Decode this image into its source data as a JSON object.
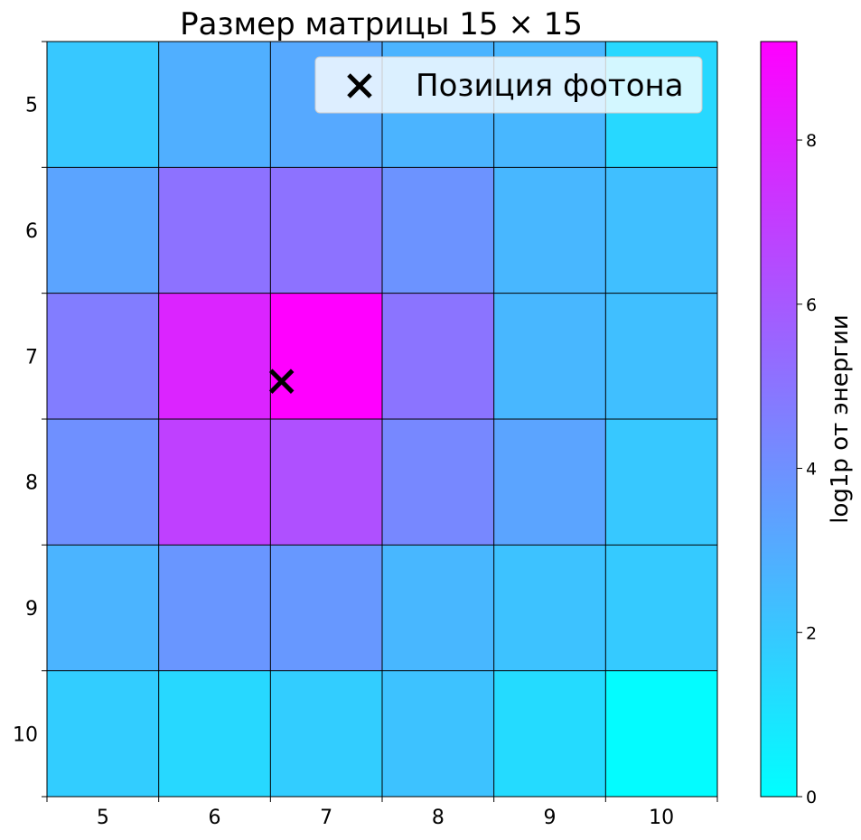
{
  "chart_data": {
    "type": "heatmap",
    "title": "Размер матрицы 15 × 15",
    "x_ticks": [
      "5",
      "6",
      "7",
      "8",
      "9",
      "10"
    ],
    "y_ticks": [
      "5",
      "6",
      "7",
      "8",
      "9",
      "10"
    ],
    "xlim": [
      4.5,
      10.5
    ],
    "ylim": [
      10.5,
      4.5
    ],
    "values": [
      [
        2.0,
        2.9,
        3.1,
        2.7,
        2.6,
        1.4
      ],
      [
        3.3,
        5.1,
        5.1,
        3.9,
        2.6,
        2.3
      ],
      [
        4.7,
        7.9,
        9.2,
        5.0,
        2.6,
        2.3
      ],
      [
        4.0,
        6.9,
        6.3,
        4.3,
        3.3,
        2.0
      ],
      [
        2.7,
        3.8,
        3.7,
        2.6,
        2.2,
        1.9
      ],
      [
        1.8,
        1.4,
        1.8,
        2.2,
        1.3,
        0.1
      ]
    ],
    "colorbar": {
      "label": "log1p от энергии",
      "ticks": [
        "0",
        "2",
        "4",
        "6",
        "8"
      ],
      "min": 0,
      "max": 9.2,
      "colormap": "cool",
      "color_start": "#00ffff",
      "color_end": "#ff00ff"
    },
    "marker": {
      "x": 6.6,
      "y": 7.2,
      "symbol": "×",
      "color": "#000000",
      "legend_label": "Позиция фотона"
    },
    "legend_position": "top-right",
    "grid": true
  }
}
